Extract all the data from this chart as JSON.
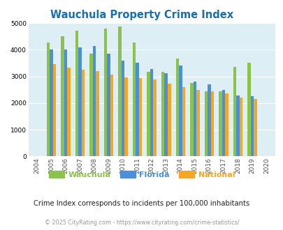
{
  "title": "Wauchula Property Crime Index",
  "years": [
    "2004",
    "2005",
    "2006",
    "2007",
    "2008",
    "2009",
    "2010",
    "2011",
    "2012",
    "2013",
    "2014",
    "2015",
    "2016",
    "2017",
    "2018",
    "2019",
    "2020"
  ],
  "wauchula": [
    0,
    4270,
    4500,
    4700,
    3850,
    4800,
    4870,
    4280,
    3170,
    3170,
    3670,
    2760,
    2450,
    2440,
    3360,
    3500,
    0
  ],
  "florida": [
    0,
    4010,
    4000,
    4080,
    4150,
    3850,
    3580,
    3520,
    3280,
    3130,
    3400,
    2810,
    2690,
    2490,
    2280,
    2260,
    0
  ],
  "national": [
    0,
    3460,
    3340,
    3250,
    3210,
    3060,
    2960,
    2940,
    2890,
    2740,
    2590,
    2490,
    2450,
    2360,
    2200,
    2140,
    0
  ],
  "wauchula_color": "#8bc34a",
  "florida_color": "#4a90d9",
  "national_color": "#f5a623",
  "bg_color": "#deeef5",
  "ylim": [
    0,
    5000
  ],
  "yticks": [
    0,
    1000,
    2000,
    3000,
    4000,
    5000
  ],
  "subtitle": "Crime Index corresponds to incidents per 100,000 inhabitants",
  "footer": "© 2025 CityRating.com - https://www.cityrating.com/crime-statistics/",
  "title_color": "#1a6fad",
  "subtitle_color": "#222222",
  "footer_color": "#999999",
  "legend_labels": [
    "Wauchula",
    "Florida",
    "National"
  ]
}
